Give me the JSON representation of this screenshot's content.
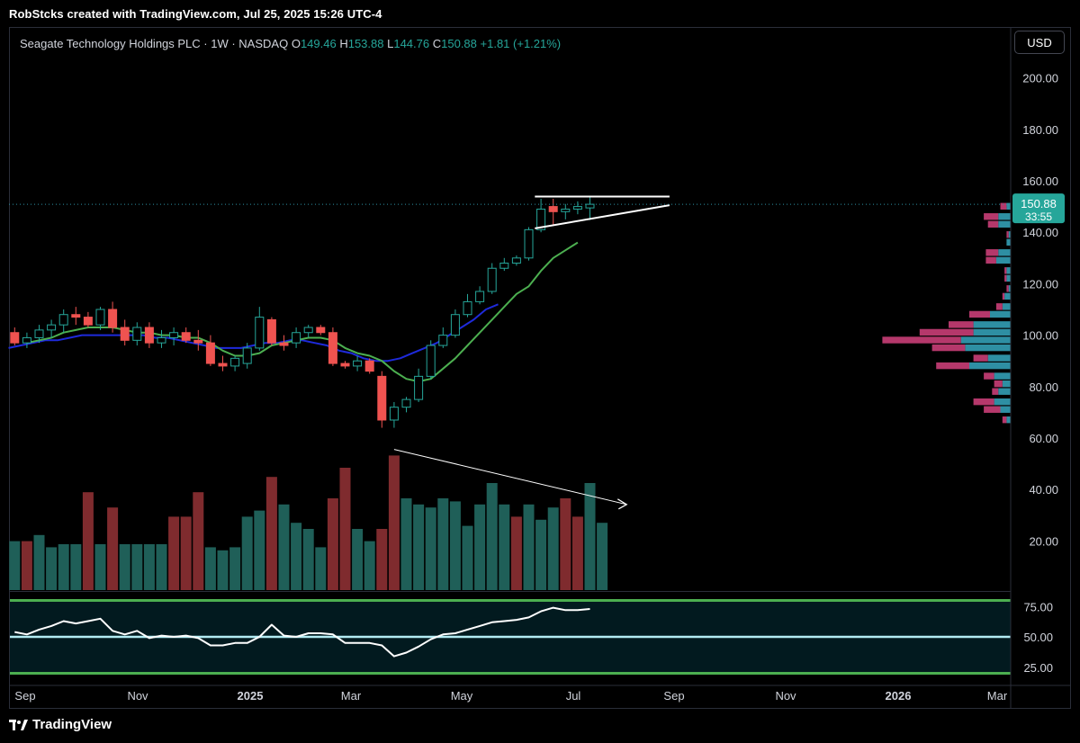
{
  "header": {
    "credit": "RobStcks created with TradingView.com, Jul 25, 2025 15:26 UTC-4"
  },
  "legend": {
    "symbol": "Seagate Technology Holdings PLC · 1W · NASDAQ",
    "o_label": "O",
    "o_value": "149.46",
    "h_label": "H",
    "h_value": "153.88",
    "l_label": "L",
    "l_value": "144.76",
    "c_label": "C",
    "c_value": "150.88",
    "change": "+1.81 (+1.21%)"
  },
  "currency_button": "USD",
  "price_tag": {
    "price": "150.88",
    "countdown": "33:55"
  },
  "footer": {
    "brand": "TradingView"
  },
  "colors": {
    "up": "#26a69a",
    "down": "#ef5350",
    "vol_up": "#1f5f58",
    "vol_down": "#7f2b2e",
    "ema_fast": "#4caf50",
    "ema_slow": "#1e2adb",
    "rsi_line": "#ffffff",
    "rsi_band": "#4caf50",
    "rsi_mid": "#b2ebf2",
    "vp_up": "#2e8fa3",
    "vp_down": "#b5386b"
  },
  "chart_data": {
    "type": "candlestick",
    "interval": "1W",
    "ylim": [
      0,
      220
    ],
    "y_ticks": [
      "200.00",
      "180.00",
      "160.00",
      "140.00",
      "120.00",
      "100.00",
      "80.00",
      "60.00",
      "40.00",
      "20.00"
    ],
    "y_tick_values": [
      200,
      180,
      160,
      140,
      120,
      100,
      80,
      60,
      40,
      20
    ],
    "x_labels": [
      "Sep",
      "Nov",
      "2025",
      "Mar",
      "May",
      "Jul",
      "Sep",
      "Nov",
      "2026",
      "Mar"
    ],
    "x_bold": [
      false,
      false,
      true,
      false,
      false,
      false,
      false,
      false,
      true,
      false
    ],
    "current_price": 150.88,
    "candles": [
      {
        "o": 101,
        "h": 103,
        "l": 96,
        "c": 97
      },
      {
        "o": 97,
        "h": 101,
        "l": 95,
        "c": 99
      },
      {
        "o": 99,
        "h": 104,
        "l": 97,
        "c": 102
      },
      {
        "o": 102,
        "h": 106,
        "l": 99,
        "c": 104
      },
      {
        "o": 104,
        "h": 110,
        "l": 101,
        "c": 108
      },
      {
        "o": 108,
        "h": 111,
        "l": 104,
        "c": 107
      },
      {
        "o": 107,
        "h": 109,
        "l": 103,
        "c": 104
      },
      {
        "o": 104,
        "h": 111,
        "l": 102,
        "c": 110
      },
      {
        "o": 110,
        "h": 113,
        "l": 101,
        "c": 103
      },
      {
        "o": 103,
        "h": 106,
        "l": 96,
        "c": 98
      },
      {
        "o": 98,
        "h": 105,
        "l": 96,
        "c": 103
      },
      {
        "o": 103,
        "h": 105,
        "l": 95,
        "c": 97
      },
      {
        "o": 97,
        "h": 102,
        "l": 95,
        "c": 99
      },
      {
        "o": 99,
        "h": 103,
        "l": 96,
        "c": 101
      },
      {
        "o": 101,
        "h": 103,
        "l": 97,
        "c": 98
      },
      {
        "o": 98,
        "h": 102,
        "l": 94,
        "c": 97
      },
      {
        "o": 97,
        "h": 100,
        "l": 88,
        "c": 89
      },
      {
        "o": 89,
        "h": 92,
        "l": 86,
        "c": 88
      },
      {
        "o": 88,
        "h": 92,
        "l": 86,
        "c": 91
      },
      {
        "o": 89,
        "h": 97,
        "l": 87,
        "c": 95
      },
      {
        "o": 95,
        "h": 111,
        "l": 94,
        "c": 107
      },
      {
        "o": 106,
        "h": 107,
        "l": 96,
        "c": 97
      },
      {
        "o": 97,
        "h": 100,
        "l": 94,
        "c": 96
      },
      {
        "o": 97,
        "h": 103,
        "l": 95,
        "c": 101
      },
      {
        "o": 101,
        "h": 104,
        "l": 99,
        "c": 103
      },
      {
        "o": 103,
        "h": 104,
        "l": 100,
        "c": 101
      },
      {
        "o": 101,
        "h": 103,
        "l": 88,
        "c": 89
      },
      {
        "o": 89,
        "h": 90,
        "l": 87,
        "c": 88
      },
      {
        "o": 88,
        "h": 92,
        "l": 86,
        "c": 90
      },
      {
        "o": 90,
        "h": 91,
        "l": 85,
        "c": 86
      },
      {
        "o": 84,
        "h": 86,
        "l": 64,
        "c": 67
      },
      {
        "o": 67,
        "h": 74,
        "l": 64,
        "c": 72
      },
      {
        "o": 72,
        "h": 76,
        "l": 70,
        "c": 75
      },
      {
        "o": 75,
        "h": 87,
        "l": 74,
        "c": 84
      },
      {
        "o": 84,
        "h": 98,
        "l": 83,
        "c": 96
      },
      {
        "o": 96,
        "h": 103,
        "l": 95,
        "c": 100
      },
      {
        "o": 100,
        "h": 110,
        "l": 99,
        "c": 108
      },
      {
        "o": 108,
        "h": 116,
        "l": 107,
        "c": 113
      },
      {
        "o": 113,
        "h": 119,
        "l": 112,
        "c": 117
      },
      {
        "o": 117,
        "h": 128,
        "l": 116,
        "c": 126
      },
      {
        "o": 126,
        "h": 130,
        "l": 125,
        "c": 128
      },
      {
        "o": 128,
        "h": 131,
        "l": 127,
        "c": 130
      },
      {
        "o": 130,
        "h": 142,
        "l": 129,
        "c": 141
      },
      {
        "o": 141,
        "h": 153,
        "l": 140,
        "c": 149
      },
      {
        "o": 150,
        "h": 153,
        "l": 143,
        "c": 148
      },
      {
        "o": 148,
        "h": 151,
        "l": 145,
        "c": 149
      },
      {
        "o": 149,
        "h": 152,
        "l": 147,
        "c": 150
      },
      {
        "o": 149.46,
        "h": 153.88,
        "l": 144.76,
        "c": 150.88
      }
    ],
    "volume": {
      "max": 100,
      "values": [
        16,
        16,
        18,
        14,
        15,
        15,
        32,
        15,
        27,
        15,
        15,
        15,
        15,
        24,
        24,
        32,
        14,
        13,
        14,
        24,
        26,
        37,
        28,
        22,
        20,
        14,
        30,
        40,
        20,
        16,
        20,
        44,
        30,
        28,
        27,
        30,
        29,
        21,
        28,
        35,
        28,
        24,
        28,
        23,
        27,
        30,
        24,
        35,
        22
      ],
      "up": [
        true,
        false,
        true,
        true,
        true,
        true,
        false,
        true,
        false,
        true,
        true,
        true,
        true,
        false,
        false,
        false,
        true,
        true,
        true,
        true,
        true,
        false,
        true,
        true,
        true,
        true,
        false,
        false,
        true,
        true,
        false,
        false,
        true,
        true,
        true,
        true,
        true,
        true,
        true,
        true,
        true,
        false,
        true,
        true,
        true,
        false,
        false,
        true,
        true
      ]
    },
    "ema_fast": [
      97,
      98,
      99,
      101,
      102,
      103,
      103,
      103,
      102,
      101,
      101,
      100,
      100,
      99,
      99,
      97,
      94,
      92,
      92,
      93,
      96,
      97,
      98,
      99,
      99,
      98,
      95,
      93,
      92,
      90,
      86,
      83,
      82,
      83,
      87,
      91,
      96,
      101,
      106,
      111,
      116,
      119,
      125,
      130,
      133,
      136
    ],
    "ema_slow": [
      95,
      96,
      97,
      98,
      98,
      99,
      100,
      100,
      100,
      100,
      100,
      100,
      99,
      99,
      98,
      97,
      96,
      95,
      95,
      95,
      96,
      97,
      97,
      98,
      98,
      97,
      96,
      94,
      93,
      91,
      90,
      90,
      91,
      93,
      95,
      97,
      100,
      103,
      106,
      110,
      112
    ],
    "volume_profile": {
      "levels": [
        67,
        71,
        74,
        78,
        81,
        84,
        88,
        91,
        95,
        98,
        101,
        104,
        108,
        111,
        115,
        118,
        122,
        125,
        129,
        132,
        136,
        139,
        143,
        146,
        150
      ],
      "up": [
        2,
        5,
        8,
        6,
        4,
        8,
        20,
        11,
        22,
        24,
        18,
        18,
        10,
        4,
        3,
        1,
        2,
        2,
        7,
        6,
        2,
        1,
        6,
        6,
        2
      ],
      "down": [
        2,
        8,
        10,
        3,
        4,
        5,
        16,
        7,
        16,
        38,
        26,
        12,
        10,
        3,
        1,
        1,
        1,
        1,
        5,
        6,
        0,
        1,
        5,
        7,
        3
      ]
    },
    "rsi": {
      "ylim": [
        15,
        85
      ],
      "ticks": [
        "75.00",
        "50.00",
        "25.00"
      ],
      "tick_values": [
        75,
        50,
        25
      ],
      "upper": 80,
      "mid": 50,
      "lower": 20,
      "values": [
        54,
        52,
        56,
        59,
        63,
        61,
        63,
        65,
        55,
        52,
        55,
        49,
        51,
        50,
        51,
        49,
        43,
        43,
        45,
        45,
        50,
        60,
        51,
        50,
        53,
        53,
        52,
        45,
        45,
        45,
        43,
        34,
        37,
        42,
        48,
        52,
        53,
        56,
        59,
        62,
        63,
        64,
        66,
        71,
        74,
        72,
        72,
        73
      ]
    },
    "annotations": {
      "resistance": [
        {
          "i": 42.5,
          "p": 153.9
        },
        {
          "i": 53.5,
          "p": 153.9
        }
      ],
      "support": [
        {
          "i": 42.5,
          "p": 141.5
        },
        {
          "i": 53.5,
          "p": 150.5
        }
      ],
      "volume_trend": [
        {
          "i": 31,
          "v": 46
        },
        {
          "i": 50,
          "v": 28
        }
      ]
    }
  }
}
